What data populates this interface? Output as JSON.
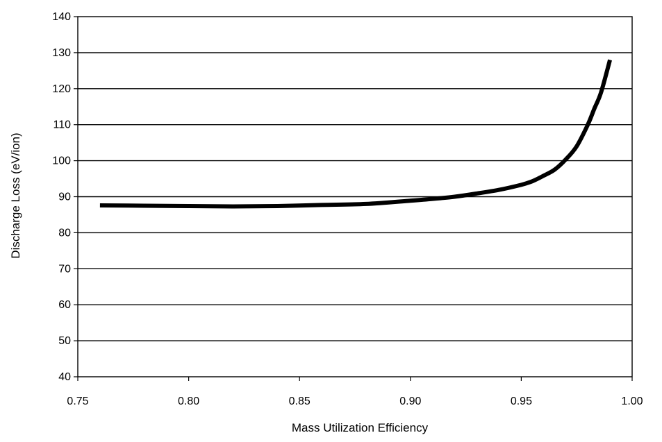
{
  "chart_data": {
    "type": "line",
    "title": "",
    "xlabel": "Mass Utilization Efficiency",
    "ylabel": "Discharge Loss (eV/ion)",
    "xlim": [
      0.75,
      1.0
    ],
    "ylim": [
      40,
      140
    ],
    "x_ticks": [
      "0.75",
      "0.80",
      "0.85",
      "0.90",
      "0.95",
      "1.00"
    ],
    "y_ticks": [
      "40",
      "50",
      "60",
      "70",
      "80",
      "90",
      "100",
      "110",
      "120",
      "130",
      "140"
    ],
    "grid": "horizontal",
    "legend": "none",
    "series": [
      {
        "color": "#000000",
        "x": [
          0.76,
          0.78,
          0.8,
          0.82,
          0.84,
          0.86,
          0.88,
          0.9,
          0.91,
          0.92,
          0.93,
          0.94,
          0.95,
          0.955,
          0.96,
          0.965,
          0.97,
          0.975,
          0.98,
          0.983,
          0.986,
          0.99
        ],
        "y": [
          87.6,
          87.5,
          87.4,
          87.3,
          87.4,
          87.7,
          88.0,
          88.9,
          89.4,
          90.0,
          90.9,
          91.9,
          93.3,
          94.3,
          95.8,
          97.5,
          100.3,
          104.0,
          110.0,
          114.5,
          119.0,
          128.0
        ]
      }
    ]
  }
}
